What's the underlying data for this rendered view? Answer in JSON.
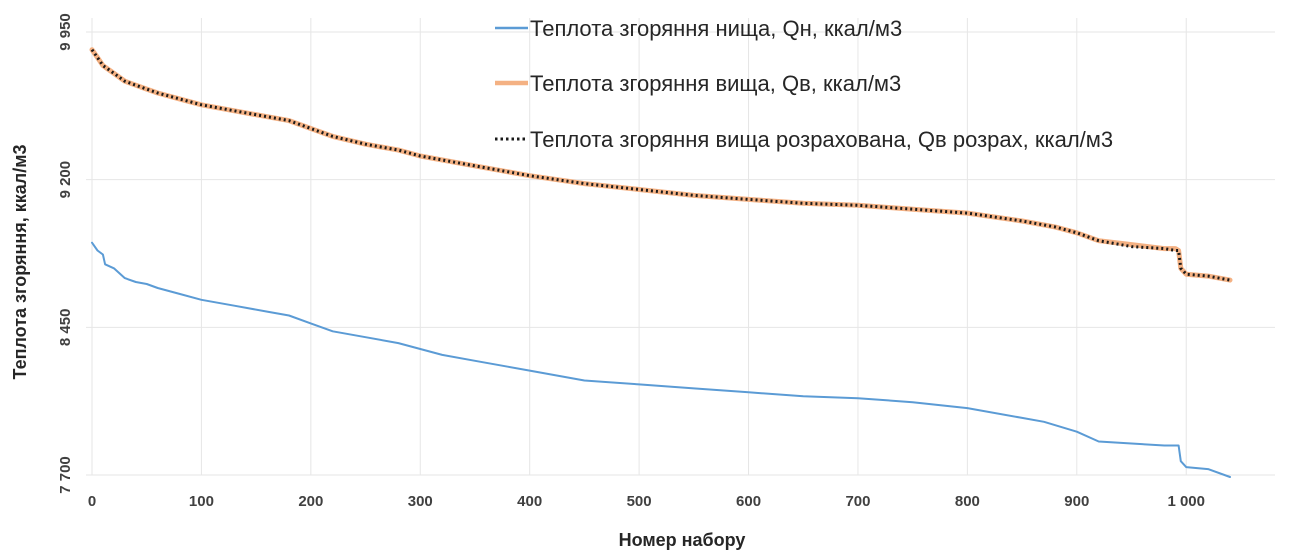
{
  "chart_data": {
    "type": "line",
    "title": "",
    "xlabel": "Номер набору",
    "ylabel": "Теплота згоряння, ккал/м3",
    "xlim": [
      0,
      1040
    ],
    "ylim": [
      7700,
      9950
    ],
    "x_ticks": [
      0,
      100,
      200,
      300,
      400,
      500,
      600,
      700,
      800,
      900,
      1000
    ],
    "x_tick_labels": [
      "0",
      "100",
      "200",
      "300",
      "400",
      "500",
      "600",
      "700",
      "800",
      "900",
      "1 000"
    ],
    "y_ticks": [
      7700,
      8450,
      9200,
      9950
    ],
    "y_tick_labels": [
      "7 700",
      "8 450",
      "9 200",
      "9 950"
    ],
    "grid": true,
    "legend_position": "top-right",
    "series": [
      {
        "name": "Теплота згоряння нища, Qн, ккал/м3",
        "color": "#5b9bd5",
        "style": "solid",
        "x": [
          0,
          5,
          10,
          12,
          20,
          30,
          40,
          50,
          60,
          80,
          100,
          130,
          160,
          180,
          200,
          220,
          250,
          280,
          300,
          320,
          350,
          380,
          400,
          450,
          500,
          550,
          600,
          650,
          700,
          750,
          800,
          850,
          870,
          900,
          920,
          950,
          980,
          990,
          993,
          995,
          1000,
          1020,
          1040
        ],
        "values": [
          8880,
          8840,
          8820,
          8770,
          8750,
          8700,
          8680,
          8670,
          8650,
          8620,
          8590,
          8560,
          8530,
          8510,
          8470,
          8430,
          8400,
          8370,
          8340,
          8310,
          8280,
          8250,
          8230,
          8180,
          8160,
          8140,
          8120,
          8100,
          8090,
          8070,
          8040,
          7990,
          7970,
          7920,
          7870,
          7860,
          7850,
          7850,
          7850,
          7770,
          7740,
          7730,
          7690
        ]
      },
      {
        "name": "Теплота згоряння вища, Qв, ккал/м3",
        "color": "#f4b183",
        "style": "solid",
        "x": [
          0,
          5,
          10,
          15,
          20,
          30,
          40,
          50,
          60,
          80,
          100,
          130,
          160,
          180,
          200,
          220,
          250,
          280,
          300,
          350,
          400,
          450,
          500,
          550,
          600,
          650,
          700,
          750,
          800,
          850,
          880,
          900,
          920,
          950,
          980,
          990,
          993,
          995,
          1000,
          1020,
          1040
        ],
        "values": [
          9860,
          9820,
          9780,
          9760,
          9740,
          9700,
          9680,
          9660,
          9640,
          9610,
          9580,
          9550,
          9520,
          9500,
          9460,
          9420,
          9380,
          9350,
          9320,
          9270,
          9220,
          9180,
          9150,
          9120,
          9100,
          9080,
          9070,
          9050,
          9030,
          8990,
          8960,
          8930,
          8890,
          8870,
          8850,
          8850,
          8840,
          8750,
          8720,
          8710,
          8690
        ]
      },
      {
        "name": "Теплота згоряння вища розрахована, Qв розрах, ккал/м3",
        "color": "#1a1a1a",
        "style": "dotted",
        "x": [
          0,
          5,
          10,
          15,
          20,
          30,
          40,
          50,
          60,
          80,
          100,
          130,
          160,
          180,
          200,
          220,
          250,
          280,
          300,
          350,
          400,
          450,
          500,
          550,
          600,
          650,
          700,
          750,
          800,
          850,
          880,
          900,
          920,
          950,
          980,
          990,
          993,
          995,
          1000,
          1020,
          1040
        ],
        "values": [
          9860,
          9820,
          9780,
          9760,
          9740,
          9700,
          9680,
          9660,
          9640,
          9610,
          9580,
          9550,
          9520,
          9500,
          9460,
          9420,
          9380,
          9350,
          9320,
          9270,
          9220,
          9180,
          9150,
          9120,
          9100,
          9080,
          9070,
          9050,
          9030,
          8990,
          8960,
          8930,
          8890,
          8860,
          8850,
          8840,
          8840,
          8750,
          8720,
          8710,
          8690
        ]
      }
    ]
  }
}
